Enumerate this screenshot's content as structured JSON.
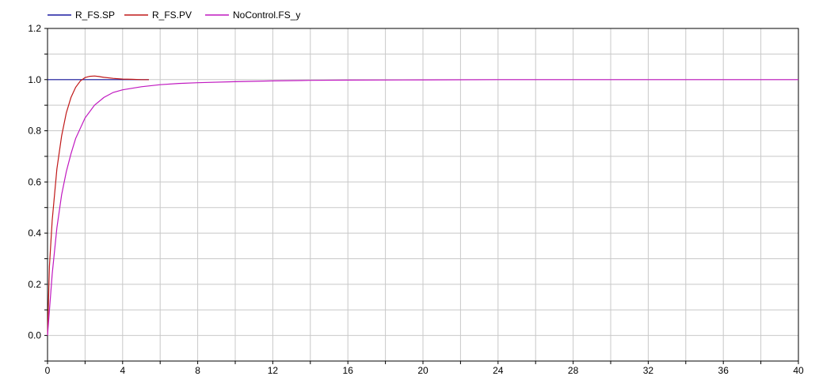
{
  "chart_data": {
    "type": "line",
    "title": "",
    "xlabel": "",
    "ylabel": "",
    "xlim": [
      0,
      40
    ],
    "ylim": [
      -0.1,
      1.2
    ],
    "grid": true,
    "legend_position": "top-left",
    "x_ticks": [
      "0",
      "4",
      "8",
      "12",
      "16",
      "20",
      "24",
      "28",
      "32",
      "36",
      "40"
    ],
    "y_ticks": [
      "0.0",
      "0.2",
      "0.4",
      "0.6",
      "0.8",
      "1.0",
      "1.2"
    ],
    "series": [
      {
        "name": "R_FS.SP",
        "color": "#1a1aa0",
        "x": [
          0,
          5.4
        ],
        "y": [
          1.0,
          1.0
        ]
      },
      {
        "name": "R_FS.PV",
        "color": "#c01818",
        "x": [
          0,
          0.1,
          0.25,
          0.5,
          0.75,
          1.0,
          1.25,
          1.5,
          1.75,
          2.0,
          2.25,
          2.5,
          2.75,
          3.0,
          3.5,
          4.0,
          4.5,
          5.0,
          5.4
        ],
        "y": [
          0.0,
          0.27,
          0.45,
          0.65,
          0.78,
          0.87,
          0.93,
          0.97,
          0.995,
          1.008,
          1.013,
          1.014,
          1.012,
          1.009,
          1.005,
          1.002,
          1.001,
          1.0,
          1.0
        ]
      },
      {
        "name": "NoControl.FS_y",
        "color": "#c018c0",
        "x": [
          0,
          0.25,
          0.5,
          0.75,
          1.0,
          1.25,
          1.5,
          2.0,
          2.5,
          3.0,
          3.5,
          4.0,
          5.0,
          6.0,
          7.0,
          8.0,
          10.0,
          12.0,
          14.0,
          16.0,
          20.0,
          24.0,
          28.0,
          32.0,
          36.0,
          40.0
        ],
        "y": [
          0.0,
          0.24,
          0.42,
          0.55,
          0.64,
          0.71,
          0.77,
          0.85,
          0.9,
          0.93,
          0.95,
          0.96,
          0.972,
          0.98,
          0.985,
          0.988,
          0.992,
          0.995,
          0.997,
          0.998,
          0.999,
          1.0,
          1.0,
          1.0,
          1.0,
          1.0
        ]
      }
    ]
  }
}
